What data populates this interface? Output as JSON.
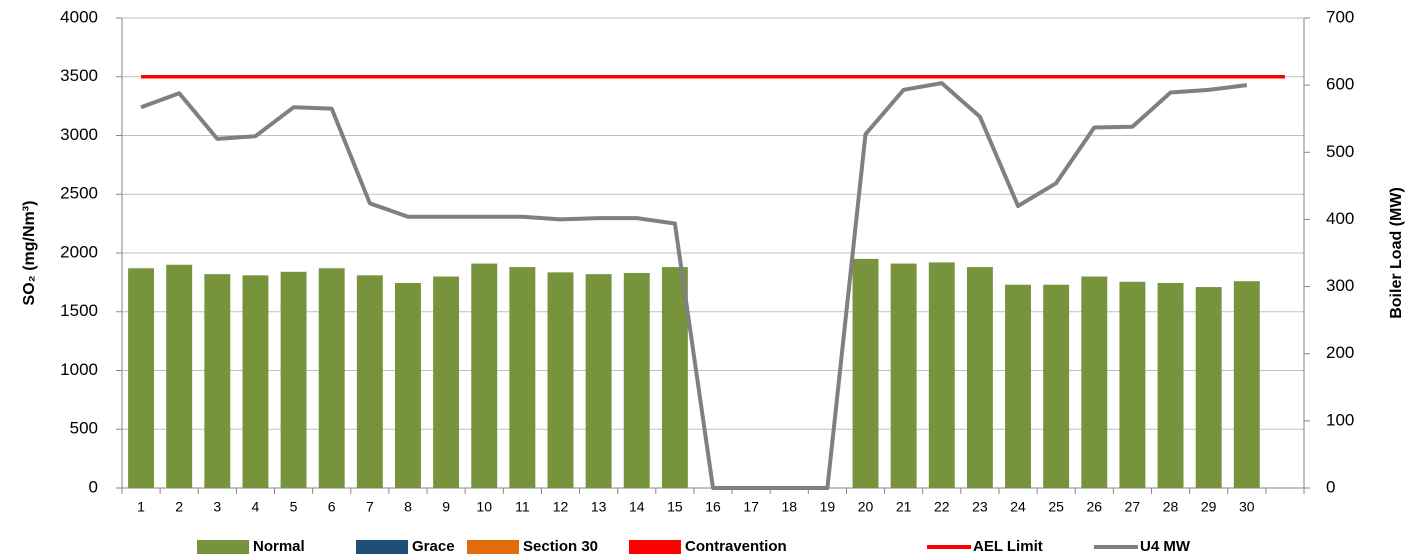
{
  "chart_data": {
    "type": "bar",
    "y_label": "SO₂ (mg/Nm³)",
    "y2_label": "Boiler Load (MW)",
    "categories": [
      "1",
      "2",
      "3",
      "4",
      "5",
      "6",
      "7",
      "8",
      "9",
      "10",
      "11",
      "12",
      "13",
      "14",
      "15",
      "16",
      "17",
      "18",
      "19",
      "20",
      "21",
      "22",
      "23",
      "24",
      "25",
      "26",
      "27",
      "28",
      "29",
      "30",
      null
    ],
    "ylim": [
      0,
      4000
    ],
    "yticks": [
      0,
      500,
      1000,
      1500,
      2000,
      2500,
      3000,
      3500,
      4000
    ],
    "y2lim": [
      0,
      700
    ],
    "y2ticks": [
      0,
      100,
      200,
      300,
      400,
      500,
      600,
      700
    ],
    "grid": true,
    "legend": "bottom",
    "series": [
      {
        "name": "Normal",
        "type": "bar",
        "color": "#77933c",
        "values": [
          1870,
          1900,
          1820,
          1810,
          1840,
          1870,
          1810,
          1745,
          1800,
          1910,
          1880,
          1835,
          1820,
          1830,
          1880,
          null,
          null,
          null,
          null,
          1950,
          1910,
          1920,
          1880,
          1730,
          1730,
          1800,
          1755,
          1745,
          1710,
          1760,
          null
        ]
      },
      {
        "name": "Grace",
        "type": "bar",
        "color": "#1f4e79",
        "values": [
          null,
          null,
          null,
          null,
          null,
          null,
          null,
          null,
          null,
          null,
          null,
          null,
          null,
          null,
          null,
          null,
          null,
          null,
          null,
          null,
          null,
          null,
          null,
          null,
          null,
          null,
          null,
          null,
          null,
          null,
          null
        ]
      },
      {
        "name": "Section 30",
        "type": "bar",
        "color": "#e36c0a",
        "values": [
          null,
          null,
          null,
          null,
          null,
          null,
          null,
          null,
          null,
          null,
          null,
          null,
          null,
          null,
          null,
          null,
          null,
          null,
          null,
          null,
          null,
          null,
          null,
          null,
          null,
          null,
          null,
          null,
          null,
          null,
          null
        ]
      },
      {
        "name": "Contravention",
        "type": "bar",
        "color": "#ff0000",
        "values": [
          null,
          null,
          null,
          null,
          null,
          null,
          null,
          null,
          null,
          null,
          null,
          null,
          null,
          null,
          null,
          null,
          null,
          null,
          null,
          null,
          null,
          null,
          null,
          null,
          null,
          null,
          null,
          null,
          null,
          null,
          null
        ]
      },
      {
        "name": "AEL Limit",
        "type": "line",
        "color": "#ff0000",
        "values": [
          3500,
          3500,
          3500,
          3500,
          3500,
          3500,
          3500,
          3500,
          3500,
          3500,
          3500,
          3500,
          3500,
          3500,
          3500,
          3500,
          3500,
          3500,
          3500,
          3500,
          3500,
          3500,
          3500,
          3500,
          3500,
          3500,
          3500,
          3500,
          3500,
          3500,
          3500
        ]
      },
      {
        "name": "U4 MW",
        "type": "line",
        "axis": "y2",
        "color": "#808080",
        "values": [
          567,
          588,
          520,
          524,
          567,
          565,
          424,
          404,
          404,
          404,
          404,
          400,
          402,
          402,
          394,
          0,
          0,
          0,
          0,
          527,
          593,
          603,
          553,
          420,
          454,
          537,
          538,
          589,
          593,
          600,
          null
        ]
      }
    ]
  }
}
